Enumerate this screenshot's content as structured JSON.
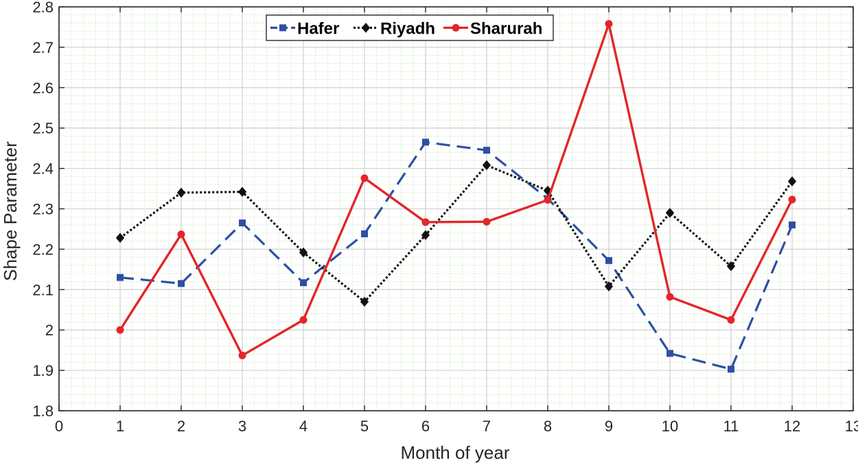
{
  "chart_data": {
    "type": "line",
    "title": "",
    "xlabel": "Month of year",
    "ylabel": "Shape Parameter",
    "xlim": [
      0,
      13
    ],
    "ylim": [
      1.8,
      2.8
    ],
    "x_ticks": [
      0,
      1,
      2,
      3,
      4,
      5,
      6,
      7,
      8,
      9,
      10,
      11,
      12,
      13
    ],
    "x_tick_labels": [
      "0",
      "1",
      "2",
      "3",
      "4",
      "5",
      "6",
      "7",
      "8",
      "9",
      "10",
      "11",
      "12",
      "13"
    ],
    "y_ticks": [
      1.8,
      1.9,
      2.0,
      2.1,
      2.2,
      2.3,
      2.4,
      2.5,
      2.6,
      2.7,
      2.8
    ],
    "y_tick_labels": [
      "1.8",
      "1.9",
      "2",
      "2.1",
      "2.2",
      "2.3",
      "2.4",
      "2.5",
      "2.6",
      "2.7",
      "2.8"
    ],
    "grid": true,
    "minor_grid": true,
    "legend_position": "top-center",
    "x": [
      1,
      2,
      3,
      4,
      5,
      6,
      7,
      8,
      9,
      10,
      11,
      12
    ],
    "series": [
      {
        "name": "Hafer",
        "color": "#2f4fa3",
        "line_style": "dashed",
        "marker": "square",
        "values": [
          2.13,
          2.115,
          2.265,
          2.117,
          2.238,
          2.465,
          2.445,
          2.325,
          2.172,
          1.942,
          1.903,
          2.26
        ]
      },
      {
        "name": "Riyadh",
        "color": "#111111",
        "line_style": "dotted",
        "marker": "diamond",
        "values": [
          2.228,
          2.34,
          2.342,
          2.192,
          2.07,
          2.235,
          2.408,
          2.345,
          2.108,
          2.29,
          2.158,
          2.368
        ]
      },
      {
        "name": "Sharurah",
        "color": "#e3262b",
        "line_style": "solid",
        "marker": "circle",
        "values": [
          2.0,
          2.237,
          1.937,
          2.025,
          2.376,
          2.267,
          2.268,
          2.322,
          2.758,
          2.082,
          2.025,
          2.323
        ]
      }
    ]
  }
}
